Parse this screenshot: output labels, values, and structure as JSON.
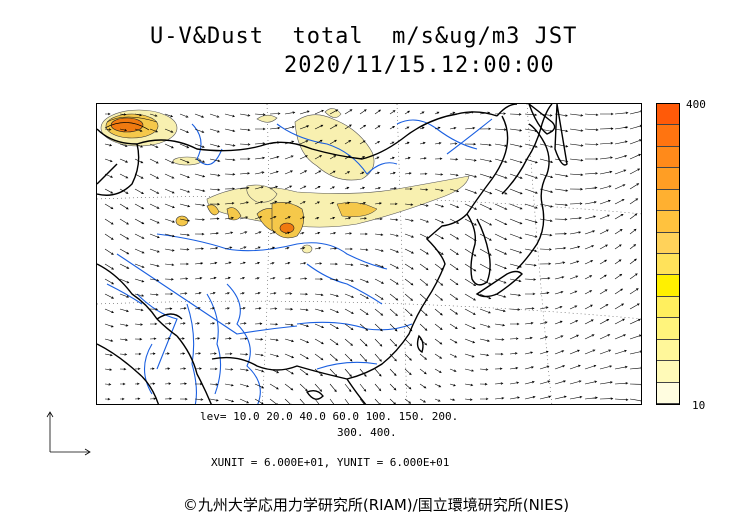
{
  "title_line1": "U-V&Dust  total  m/s&ug/m3 JST",
  "title_line2": "2020/11/15.12:00:00",
  "colorbar": {
    "max_label": "400",
    "min_label": "10",
    "colors": [
      "#fffde0",
      "#fffab8",
      "#fff79a",
      "#fff47c",
      "#ffef5e",
      "#fff000",
      "#ffe25a",
      "#ffd25a",
      "#ffc23e",
      "#ffb030",
      "#ff9e24",
      "#ff8a1a",
      "#ff7410",
      "#ff5a08"
    ]
  },
  "levels_line1": "lev= 10.0 20.0 40.0 60.0 100. 150. 200.",
  "levels_line2": "300. 400.",
  "units": "XUNIT = 6.000E+01, YUNIT = 6.000E+01",
  "footer": "©九州大学応用力学研究所(RIAM)/国立環境研究所(NIES)",
  "colors": {
    "coast": "#000000",
    "river": "#1a5fe0",
    "border": "#000000",
    "dust_low": "#f8f0b0",
    "dust_mid": "#f5c84a",
    "dust_high": "#f07a10"
  }
}
